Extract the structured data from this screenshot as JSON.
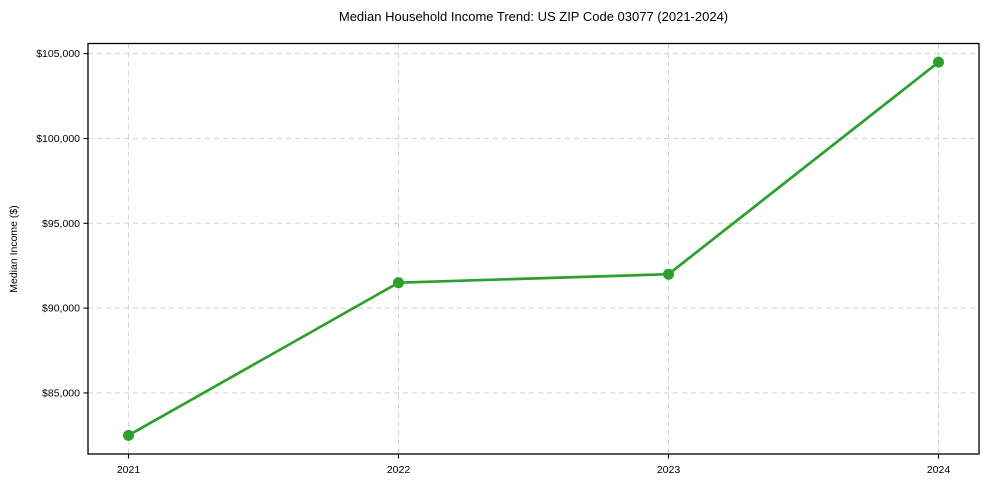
{
  "figure": {
    "title": "Median Household Income Trend: US ZIP Code 03077 (2021-2024)"
  },
  "chart_data": {
    "type": "line",
    "title": "Median Household Income Trend: US ZIP Code 03077 (2021-2024)",
    "xlabel": "",
    "ylabel": "Median Income ($)",
    "categories": [
      "2021",
      "2022",
      "2023",
      "2024"
    ],
    "x": [
      2021,
      2022,
      2023,
      2024
    ],
    "series": [
      {
        "name": "Median Income",
        "values": [
          82500,
          91500,
          92000,
          104500
        ]
      }
    ],
    "yticks": [
      85000,
      90000,
      95000,
      100000,
      105000
    ],
    "ytick_labels": [
      "$85,000",
      "$90,000",
      "$95,000",
      "$100,000",
      "$105,000"
    ],
    "ylim": [
      81400,
      105600
    ],
    "x_margin_frac": 0.05,
    "grid": "both-dashed",
    "legend": "none",
    "colors": {
      "line": "#2ca02c",
      "marker": "#2ca02c",
      "grid": "#d2d2d2",
      "spine": "#000000",
      "tick": "#000000",
      "text": "#000000",
      "background": "#ffffff"
    }
  }
}
